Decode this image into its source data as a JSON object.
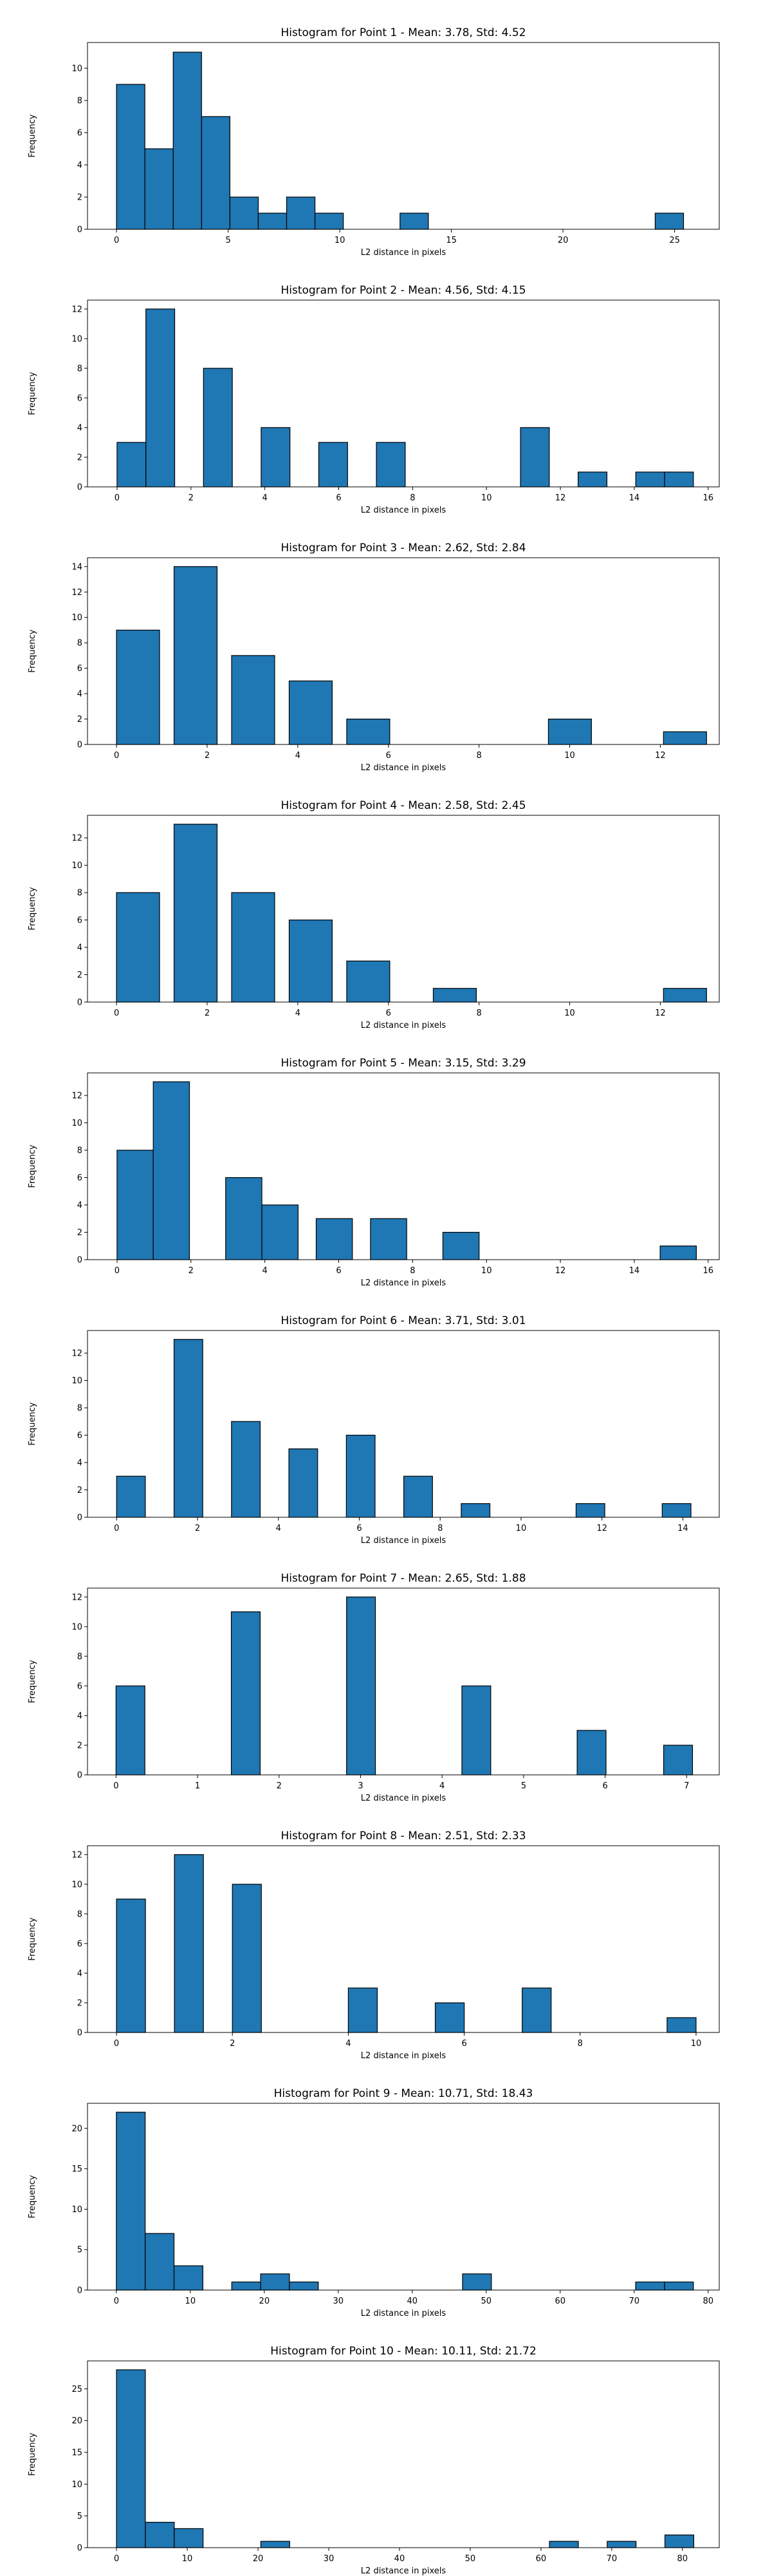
{
  "style": {
    "bar_fill": "#1f77b4",
    "bar_edge": "#000000",
    "background": "#ffffff"
  },
  "chart_data": [
    {
      "type": "bar",
      "title": "Histogram for Point 1 - Mean: 3.78, Std: 4.52",
      "xlabel": "L2 distance in pixels",
      "ylabel": "Frequency",
      "xlim": [
        -1.3,
        27
      ],
      "ylim": [
        0,
        11.6
      ],
      "xticks": [
        0,
        5,
        10,
        15,
        20,
        25
      ],
      "yticks": [
        0,
        2,
        4,
        6,
        8,
        10
      ],
      "bins": [
        {
          "start": 0.0,
          "end": 1.27,
          "count": 9
        },
        {
          "start": 1.27,
          "end": 2.54,
          "count": 5
        },
        {
          "start": 2.54,
          "end": 3.81,
          "count": 11
        },
        {
          "start": 3.81,
          "end": 5.08,
          "count": 7
        },
        {
          "start": 5.08,
          "end": 6.35,
          "count": 2
        },
        {
          "start": 6.35,
          "end": 7.62,
          "count": 1
        },
        {
          "start": 7.62,
          "end": 8.89,
          "count": 2
        },
        {
          "start": 8.89,
          "end": 10.16,
          "count": 1
        },
        {
          "start": 12.7,
          "end": 13.97,
          "count": 1
        },
        {
          "start": 24.13,
          "end": 25.4,
          "count": 1
        }
      ]
    },
    {
      "type": "bar",
      "title": "Histogram for Point 2 - Mean: 4.56, Std: 4.15",
      "xlabel": "L2 distance in pixels",
      "ylabel": "Frequency",
      "xlim": [
        -0.8,
        16.3
      ],
      "ylim": [
        0,
        12.6
      ],
      "xticks": [
        0,
        2,
        4,
        6,
        8,
        10,
        12,
        14,
        16
      ],
      "yticks": [
        0,
        2,
        4,
        6,
        8,
        10,
        12
      ],
      "bins": [
        {
          "start": 0.0,
          "end": 0.78,
          "count": 3
        },
        {
          "start": 0.78,
          "end": 1.56,
          "count": 12
        },
        {
          "start": 2.34,
          "end": 3.12,
          "count": 8
        },
        {
          "start": 3.9,
          "end": 4.68,
          "count": 4
        },
        {
          "start": 5.46,
          "end": 6.24,
          "count": 3
        },
        {
          "start": 7.02,
          "end": 7.8,
          "count": 3
        },
        {
          "start": 10.92,
          "end": 11.7,
          "count": 4
        },
        {
          "start": 12.48,
          "end": 13.26,
          "count": 1
        },
        {
          "start": 14.04,
          "end": 14.82,
          "count": 1
        },
        {
          "start": 14.82,
          "end": 15.6,
          "count": 1
        }
      ]
    },
    {
      "type": "bar",
      "title": "Histogram for Point 3 - Mean: 2.62, Std: 2.84",
      "xlabel": "L2 distance in pixels",
      "ylabel": "Frequency",
      "xlim": [
        -0.64,
        13.3
      ],
      "ylim": [
        0,
        14.7
      ],
      "xticks": [
        0,
        2,
        4,
        6,
        8,
        10,
        12
      ],
      "yticks": [
        0,
        2,
        4,
        6,
        8,
        10,
        12,
        14
      ],
      "bins": [
        {
          "start": 0.0,
          "end": 0.95,
          "count": 9
        },
        {
          "start": 1.27,
          "end": 2.22,
          "count": 14
        },
        {
          "start": 2.54,
          "end": 3.49,
          "count": 7
        },
        {
          "start": 3.81,
          "end": 4.76,
          "count": 5
        },
        {
          "start": 5.08,
          "end": 6.03,
          "count": 2
        },
        {
          "start": 9.53,
          "end": 10.48,
          "count": 2
        },
        {
          "start": 12.07,
          "end": 13.02,
          "count": 1
        }
      ]
    },
    {
      "type": "bar",
      "title": "Histogram for Point 4 - Mean: 2.58, Std: 2.45",
      "xlabel": "L2 distance in pixels",
      "ylabel": "Frequency",
      "xlim": [
        -0.64,
        13.3
      ],
      "ylim": [
        0,
        13.65
      ],
      "xticks": [
        0,
        2,
        4,
        6,
        8,
        10,
        12
      ],
      "yticks": [
        0,
        2,
        4,
        6,
        8,
        10,
        12
      ],
      "bins": [
        {
          "start": 0.0,
          "end": 0.95,
          "count": 8
        },
        {
          "start": 1.27,
          "end": 2.22,
          "count": 13
        },
        {
          "start": 2.54,
          "end": 3.49,
          "count": 8
        },
        {
          "start": 3.81,
          "end": 4.76,
          "count": 6
        },
        {
          "start": 5.08,
          "end": 6.03,
          "count": 3
        },
        {
          "start": 6.99,
          "end": 7.94,
          "count": 1
        },
        {
          "start": 12.07,
          "end": 13.02,
          "count": 1
        }
      ]
    },
    {
      "type": "bar",
      "title": "Histogram for Point 5 - Mean: 3.15, Std: 3.29",
      "xlabel": "L2 distance in pixels",
      "ylabel": "Frequency",
      "xlim": [
        -0.8,
        16.3
      ],
      "ylim": [
        0,
        13.65
      ],
      "xticks": [
        0,
        2,
        4,
        6,
        8,
        10,
        12,
        14,
        16
      ],
      "yticks": [
        0,
        2,
        4,
        6,
        8,
        10,
        12
      ],
      "bins": [
        {
          "start": 0.0,
          "end": 0.98,
          "count": 8
        },
        {
          "start": 0.98,
          "end": 1.96,
          "count": 13
        },
        {
          "start": 2.94,
          "end": 3.92,
          "count": 6
        },
        {
          "start": 3.92,
          "end": 4.9,
          "count": 4
        },
        {
          "start": 5.39,
          "end": 6.37,
          "count": 3
        },
        {
          "start": 6.86,
          "end": 7.84,
          "count": 3
        },
        {
          "start": 8.82,
          "end": 9.8,
          "count": 2
        },
        {
          "start": 14.7,
          "end": 15.68,
          "count": 1
        }
      ]
    },
    {
      "type": "bar",
      "title": "Histogram for Point 6 - Mean: 3.71, Std: 3.01",
      "xlabel": "L2 distance in pixels",
      "ylabel": "Frequency",
      "xlim": [
        -0.72,
        14.9
      ],
      "ylim": [
        0,
        13.65
      ],
      "xticks": [
        0,
        2,
        4,
        6,
        8,
        10,
        12,
        14
      ],
      "yticks": [
        0,
        2,
        4,
        6,
        8,
        10,
        12
      ],
      "bins": [
        {
          "start": 0.0,
          "end": 0.71,
          "count": 3
        },
        {
          "start": 1.42,
          "end": 2.13,
          "count": 13
        },
        {
          "start": 2.84,
          "end": 3.55,
          "count": 7
        },
        {
          "start": 4.26,
          "end": 4.97,
          "count": 5
        },
        {
          "start": 5.68,
          "end": 6.39,
          "count": 6
        },
        {
          "start": 7.1,
          "end": 7.81,
          "count": 3
        },
        {
          "start": 8.52,
          "end": 9.23,
          "count": 1
        },
        {
          "start": 11.36,
          "end": 12.07,
          "count": 1
        },
        {
          "start": 13.49,
          "end": 14.2,
          "count": 1
        }
      ]
    },
    {
      "type": "bar",
      "title": "Histogram for Point 7 - Mean: 2.65, Std: 1.88",
      "xlabel": "L2 distance in pixels",
      "ylabel": "Frequency",
      "xlim": [
        -0.35,
        7.4
      ],
      "ylim": [
        0,
        12.6
      ],
      "xticks": [
        0,
        1,
        2,
        3,
        4,
        5,
        6,
        7
      ],
      "yticks": [
        0,
        2,
        4,
        6,
        8,
        10,
        12
      ],
      "bins": [
        {
          "start": 0.0,
          "end": 0.354,
          "count": 6
        },
        {
          "start": 1.414,
          "end": 1.768,
          "count": 11
        },
        {
          "start": 2.828,
          "end": 3.182,
          "count": 12
        },
        {
          "start": 4.243,
          "end": 4.597,
          "count": 6
        },
        {
          "start": 5.657,
          "end": 6.011,
          "count": 3
        },
        {
          "start": 6.718,
          "end": 7.072,
          "count": 2
        }
      ]
    },
    {
      "type": "bar",
      "title": "Histogram for Point 8 - Mean: 2.51, Std: 2.33",
      "xlabel": "L2 distance in pixels",
      "ylabel": "Frequency",
      "xlim": [
        -0.5,
        10.4
      ],
      "ylim": [
        0,
        12.6
      ],
      "xticks": [
        0,
        2,
        4,
        6,
        8,
        10
      ],
      "yticks": [
        0,
        2,
        4,
        6,
        8,
        10,
        12
      ],
      "bins": [
        {
          "start": 0.0,
          "end": 0.5,
          "count": 9
        },
        {
          "start": 1.0,
          "end": 1.5,
          "count": 12
        },
        {
          "start": 2.0,
          "end": 2.5,
          "count": 10
        },
        {
          "start": 4.0,
          "end": 4.5,
          "count": 3
        },
        {
          "start": 5.5,
          "end": 6.0,
          "count": 2
        },
        {
          "start": 7.0,
          "end": 7.5,
          "count": 3
        },
        {
          "start": 9.5,
          "end": 10.0,
          "count": 1
        }
      ]
    },
    {
      "type": "bar",
      "title": "Histogram for Point 9 - Mean: 10.71, Std: 18.43",
      "xlabel": "L2 distance in pixels",
      "ylabel": "Frequency",
      "xlim": [
        -3.9,
        81.5
      ],
      "ylim": [
        0,
        23.1
      ],
      "xticks": [
        0,
        10,
        20,
        30,
        40,
        50,
        60,
        70,
        80
      ],
      "yticks": [
        0,
        5,
        10,
        15,
        20
      ],
      "bins": [
        {
          "start": 0.0,
          "end": 3.9,
          "count": 22
        },
        {
          "start": 3.9,
          "end": 7.8,
          "count": 7
        },
        {
          "start": 7.8,
          "end": 11.7,
          "count": 3
        },
        {
          "start": 15.6,
          "end": 19.5,
          "count": 1
        },
        {
          "start": 19.5,
          "end": 23.4,
          "count": 2
        },
        {
          "start": 23.4,
          "end": 27.3,
          "count": 1
        },
        {
          "start": 46.8,
          "end": 50.7,
          "count": 2
        },
        {
          "start": 70.2,
          "end": 74.1,
          "count": 1
        },
        {
          "start": 74.1,
          "end": 78.0,
          "count": 1
        }
      ]
    },
    {
      "type": "bar",
      "title": "Histogram for Point 10 - Mean: 10.11, Std: 21.72",
      "xlabel": "L2 distance in pixels",
      "ylabel": "Frequency",
      "xlim": [
        -4.1,
        85.2
      ],
      "ylim": [
        0,
        29.4
      ],
      "xticks": [
        0,
        10,
        20,
        30,
        40,
        50,
        60,
        70,
        80
      ],
      "yticks": [
        0,
        5,
        10,
        15,
        20,
        25
      ],
      "bins": [
        {
          "start": 0.0,
          "end": 4.08,
          "count": 28
        },
        {
          "start": 4.08,
          "end": 8.16,
          "count": 4
        },
        {
          "start": 8.16,
          "end": 12.24,
          "count": 3
        },
        {
          "start": 20.4,
          "end": 24.48,
          "count": 1
        },
        {
          "start": 61.2,
          "end": 65.28,
          "count": 1
        },
        {
          "start": 69.36,
          "end": 73.44,
          "count": 1
        },
        {
          "start": 77.52,
          "end": 81.6,
          "count": 2
        }
      ]
    }
  ]
}
